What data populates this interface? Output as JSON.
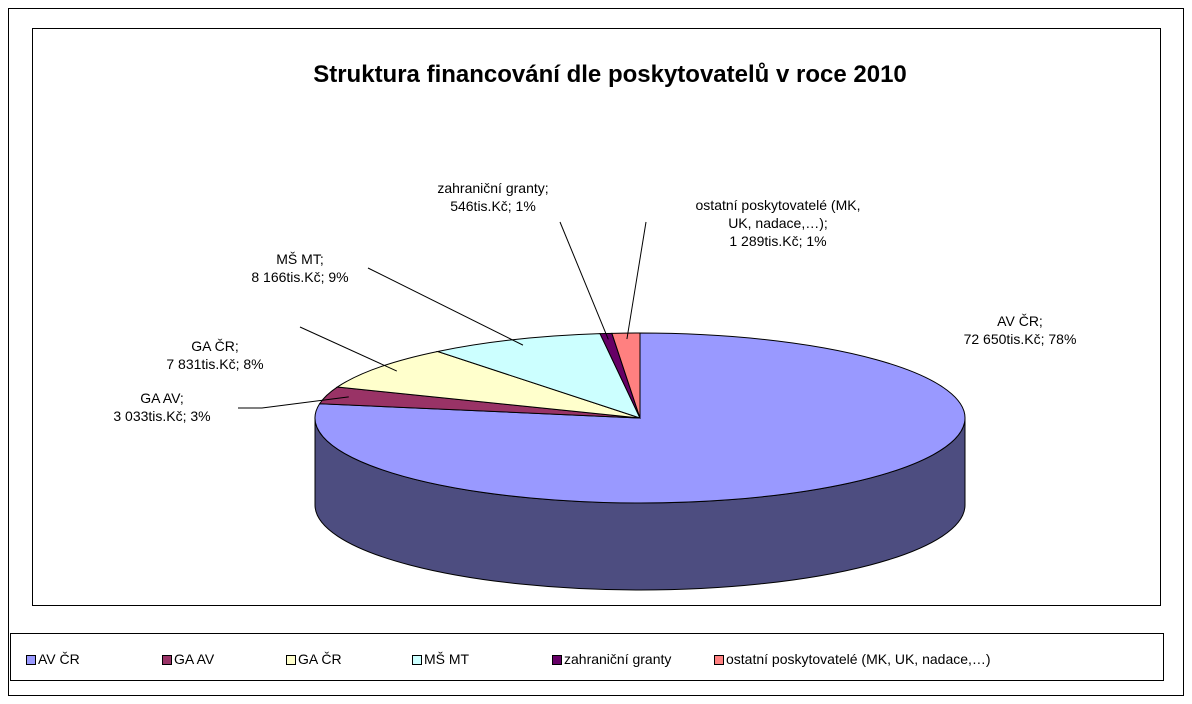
{
  "chart_data": {
    "type": "pie",
    "title": "Struktura financování dle poskytovatelů v roce 2010",
    "categories": [
      "AV ČR",
      "GA AV",
      "GA ČR",
      "MŠ MT",
      "zahraniční granty",
      "ostatní poskytovatelé (MK, UK, nadace,…)"
    ],
    "values": [
      72650,
      3033,
      7831,
      8166,
      546,
      1289
    ],
    "value_labels": [
      "AV ČR;\n72 650tis.Kč; 78%",
      "GA AV;\n3 033tis.Kč; 3%",
      "GA ČR;\n7 831tis.Kč; 8%",
      "MŠ MT;\n8 166tis.Kč; 9%",
      "zahraniční granty;\n546tis.Kč; 1%",
      "ostatní poskytovatelé (MK,\nUK, nadace,…);\n1 289tis.Kč; 1%"
    ],
    "colors": [
      "#9999ff",
      "#993366",
      "#ffffcc",
      "#ccffff",
      "#660066",
      "#ff8080"
    ],
    "legend": "bottom"
  }
}
